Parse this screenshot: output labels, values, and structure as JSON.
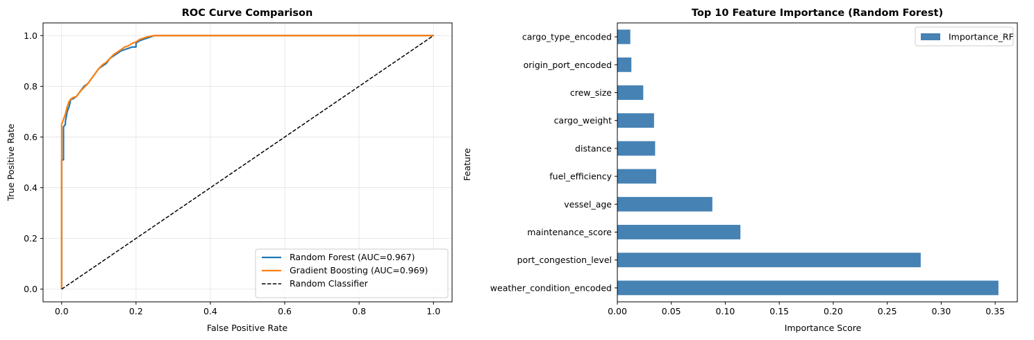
{
  "chart_data": [
    {
      "type": "line",
      "title": "ROC Curve Comparison",
      "xlabel": "False Positive Rate",
      "ylabel": "True Positive Rate",
      "xlim": [
        -0.05,
        1.05
      ],
      "ylim": [
        -0.05,
        1.05
      ],
      "xticks": [
        "0.0",
        "0.2",
        "0.4",
        "0.6",
        "0.8",
        "1.0"
      ],
      "yticks": [
        "0.0",
        "0.2",
        "0.4",
        "0.6",
        "0.8",
        "1.0"
      ],
      "grid": true,
      "legend_position": "lower-right",
      "series": [
        {
          "name": "Random Forest (AUC=0.967)",
          "color": "#1f77b4",
          "style": "solid",
          "x": [
            0.0,
            0.0,
            0.005,
            0.005,
            0.01,
            0.01,
            0.015,
            0.02,
            0.025,
            0.03,
            0.04,
            0.05,
            0.06,
            0.07,
            0.08,
            0.09,
            0.1,
            0.11,
            0.12,
            0.13,
            0.14,
            0.15,
            0.16,
            0.17,
            0.18,
            0.19,
            0.2,
            0.2,
            0.21,
            0.22,
            0.23,
            0.25,
            0.4,
            0.6,
            0.8,
            1.0
          ],
          "y": [
            0.0,
            0.51,
            0.51,
            0.64,
            0.65,
            0.66,
            0.7,
            0.72,
            0.75,
            0.75,
            0.76,
            0.78,
            0.8,
            0.81,
            0.83,
            0.85,
            0.87,
            0.88,
            0.89,
            0.91,
            0.92,
            0.93,
            0.94,
            0.945,
            0.95,
            0.955,
            0.955,
            0.97,
            0.98,
            0.985,
            0.99,
            1.0,
            1.0,
            1.0,
            1.0,
            1.0
          ]
        },
        {
          "name": "Gradient Boosting (AUC=0.969)",
          "color": "#ff7f0e",
          "style": "solid",
          "x": [
            0.0,
            0.0,
            0.005,
            0.01,
            0.015,
            0.02,
            0.025,
            0.03,
            0.04,
            0.05,
            0.06,
            0.07,
            0.08,
            0.09,
            0.1,
            0.11,
            0.12,
            0.13,
            0.14,
            0.15,
            0.16,
            0.17,
            0.18,
            0.19,
            0.2,
            0.21,
            0.22,
            0.23,
            0.25,
            0.4,
            0.6,
            0.8,
            1.0
          ],
          "y": [
            0.0,
            0.65,
            0.67,
            0.69,
            0.72,
            0.74,
            0.75,
            0.755,
            0.76,
            0.78,
            0.795,
            0.81,
            0.83,
            0.85,
            0.87,
            0.885,
            0.895,
            0.91,
            0.925,
            0.935,
            0.945,
            0.955,
            0.96,
            0.97,
            0.975,
            0.985,
            0.99,
            0.995,
            1.0,
            1.0,
            1.0,
            1.0,
            1.0
          ]
        },
        {
          "name": "Random Classifier",
          "color": "#000000",
          "style": "dashed",
          "x": [
            0.0,
            1.0
          ],
          "y": [
            0.0,
            1.0
          ]
        }
      ]
    },
    {
      "type": "bar",
      "orientation": "horizontal",
      "title": "Top 10 Feature Importance (Random Forest)",
      "xlabel": "Importance Score",
      "ylabel": "Feature",
      "xlim": [
        0,
        0.3705
      ],
      "xticks": [
        "0.00",
        "0.05",
        "0.10",
        "0.15",
        "0.20",
        "0.25",
        "0.30",
        "0.35"
      ],
      "grid": false,
      "legend_position": "top-right",
      "color": "#4682b4",
      "series": [
        {
          "name": "Importance_RF"
        }
      ],
      "categories": [
        "weather_condition_encoded",
        "port_congestion_level",
        "maintenance_score",
        "vessel_age",
        "fuel_efficiency",
        "distance",
        "cargo_weight",
        "crew_size",
        "origin_port_encoded",
        "cargo_type_encoded"
      ],
      "values": [
        0.353,
        0.281,
        0.114,
        0.088,
        0.036,
        0.035,
        0.034,
        0.024,
        0.013,
        0.012
      ]
    }
  ]
}
